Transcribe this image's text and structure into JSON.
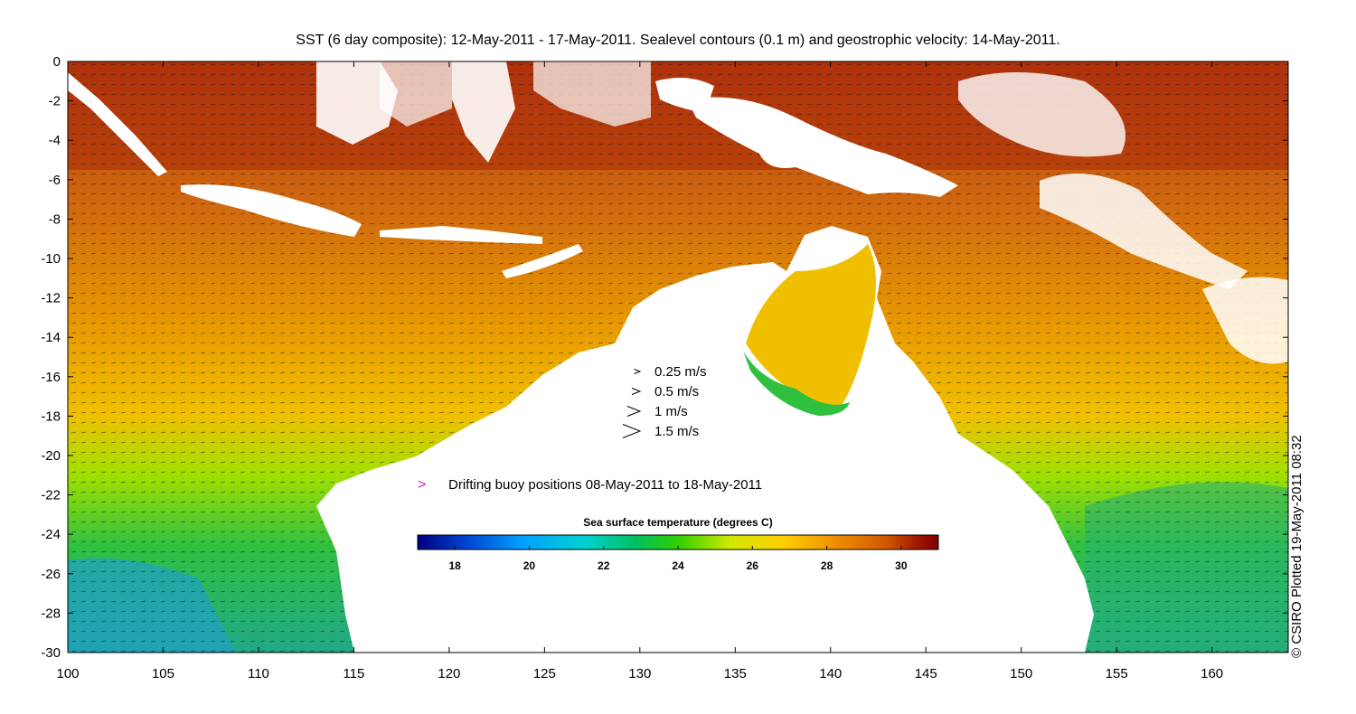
{
  "title": "SST (6 day composite): 12-May-2011 - 17-May-2011. Sealevel contours (0.1 m) and geostrophic velocity: 14-May-2011.",
  "credit": "© CSIRO Plotted 19-May-2011 08:32",
  "axes": {
    "x_ticks": [
      "100",
      "105",
      "110",
      "115",
      "120",
      "125",
      "130",
      "135",
      "140",
      "145",
      "150",
      "155",
      "160"
    ],
    "y_ticks": [
      "0",
      "-2",
      "-4",
      "-6",
      "-8",
      "-10",
      "-12",
      "-14",
      "-16",
      "-18",
      "-20",
      "-22",
      "-24",
      "-26",
      "-28",
      "-30"
    ],
    "lon_range": [
      100,
      164
    ],
    "lat_range": [
      -30,
      0
    ]
  },
  "velocity_legend": [
    {
      "label": "0.25 m/s",
      "speed": 0.25
    },
    {
      "label": "0.5 m/s",
      "speed": 0.5
    },
    {
      "label": "1 m/s",
      "speed": 1
    },
    {
      "label": "1.5 m/s",
      "speed": 1.5
    }
  ],
  "buoy_legend": {
    "label": "Drifting buoy positions 08-May-2011 to 18-May-2011",
    "marker_color": "#cc22cc"
  },
  "colorbar": {
    "title": "Sea surface temperature (degrees C)",
    "ticks": [
      "18",
      "20",
      "22",
      "24",
      "26",
      "28",
      "30"
    ],
    "range": [
      17,
      31
    ],
    "colors": [
      "#000080",
      "#0040d0",
      "#00a0ff",
      "#00d0d0",
      "#00c060",
      "#30d000",
      "#d0e800",
      "#ffd000",
      "#f09000",
      "#d05800",
      "#a01800",
      "#800000"
    ]
  }
}
